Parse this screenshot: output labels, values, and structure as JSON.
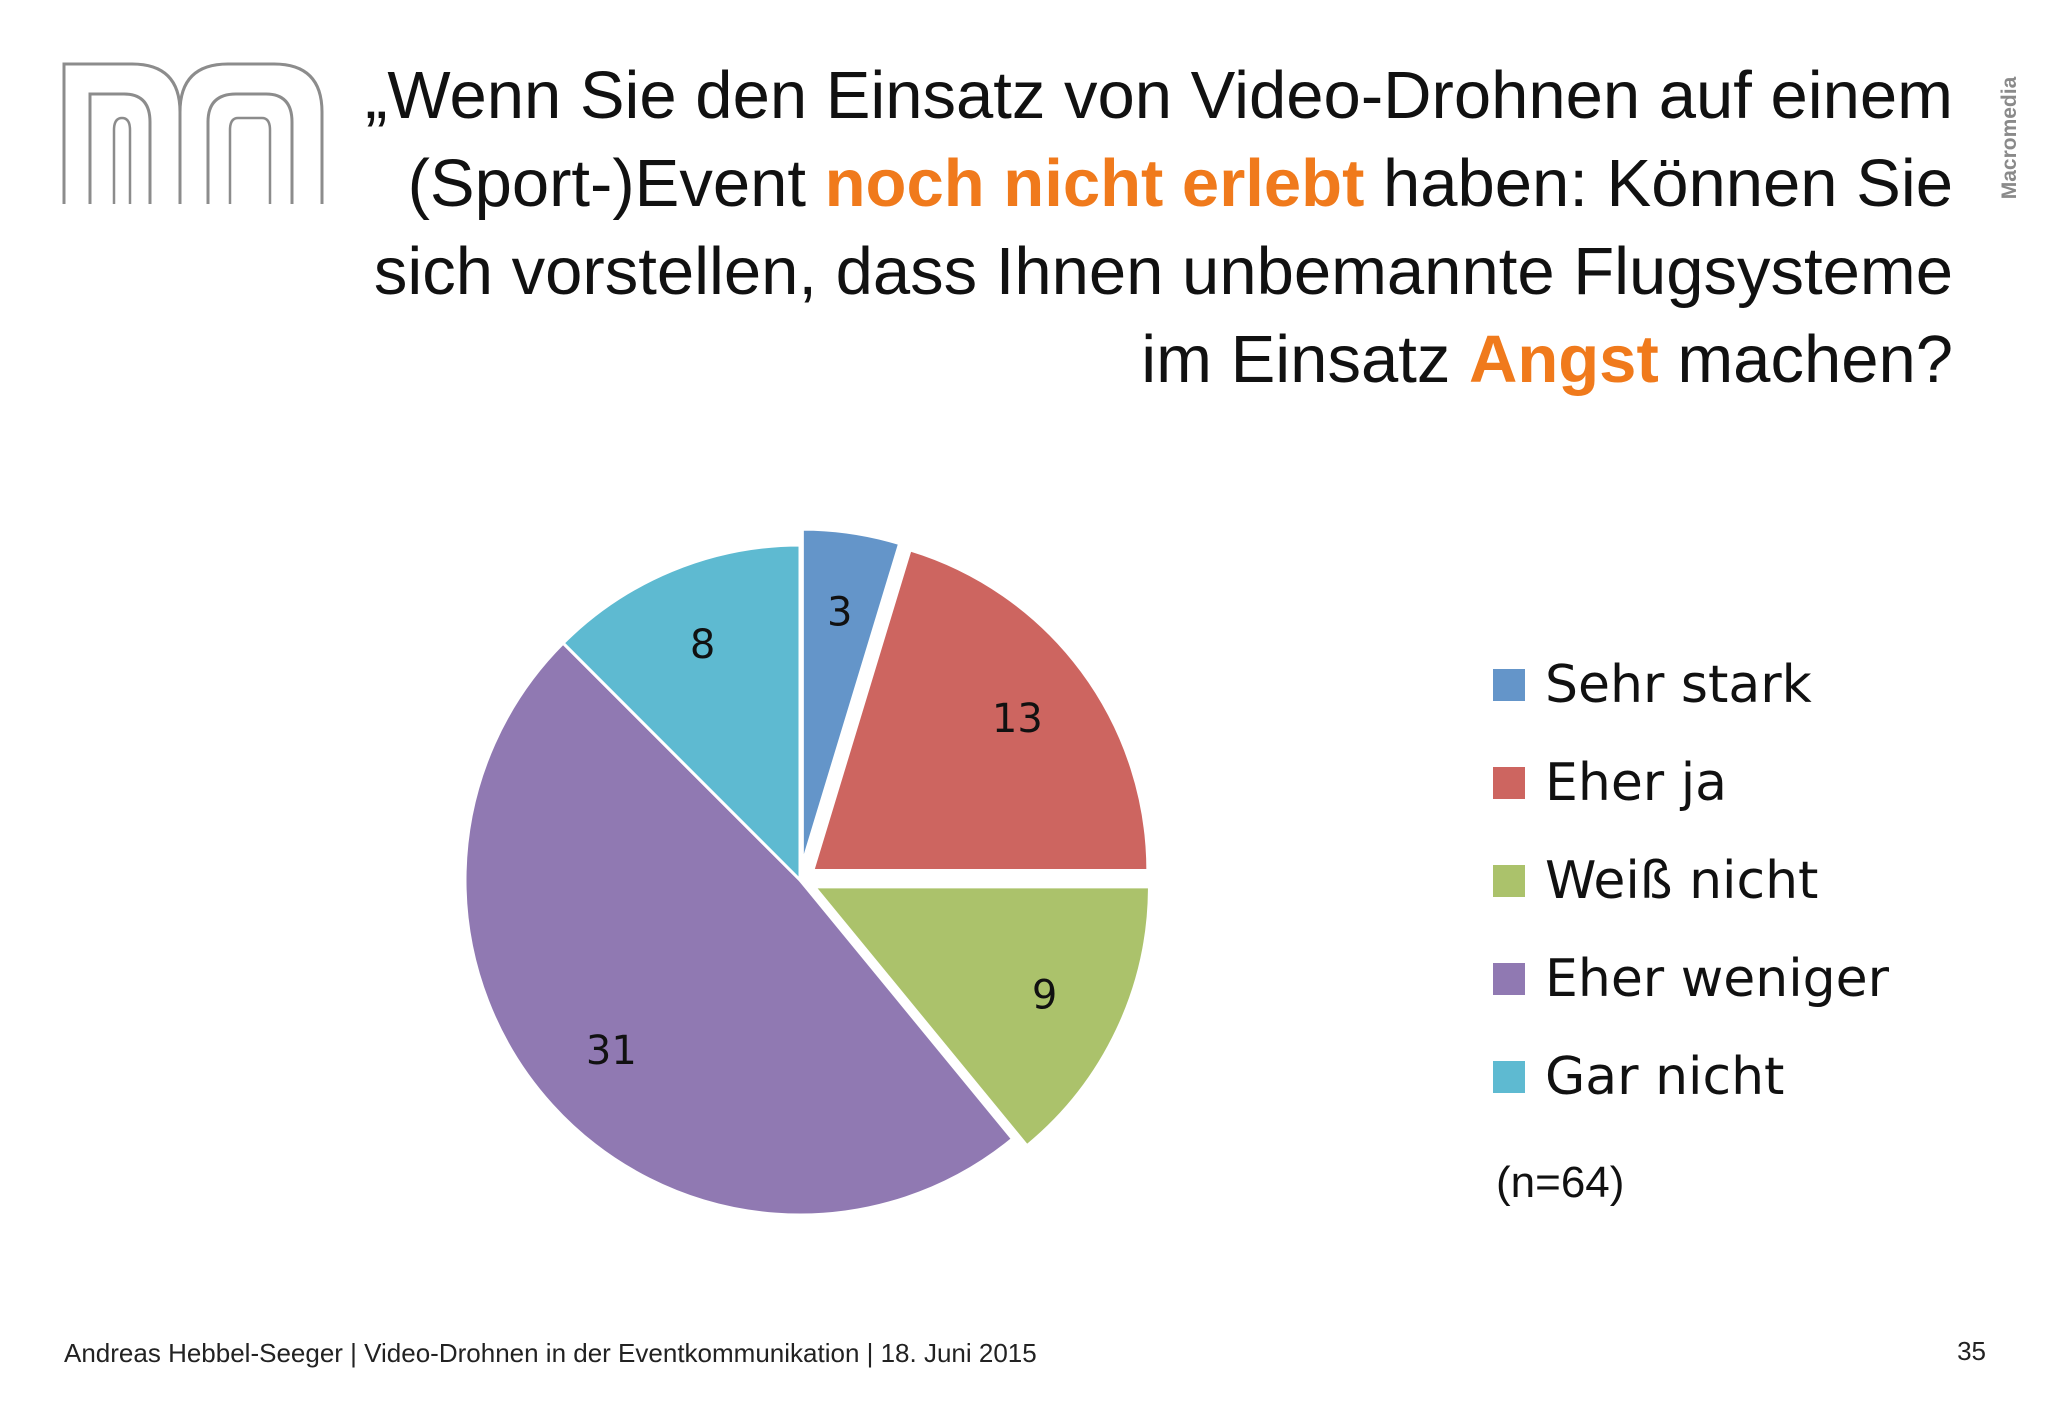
{
  "brand": "Macromedia",
  "logo": {
    "icon": "m-logo-icon",
    "color": "#8c8c8c"
  },
  "question": {
    "parts": [
      {
        "text": "„Wenn Sie den Einsatz von Video-Drohnen auf einem (Sport-)Event ",
        "highlight": false
      },
      {
        "text": "noch nicht erlebt",
        "highlight": true
      },
      {
        "text": " haben: Können Sie sich vorstellen, dass Ihnen unbemannte Flugsysteme im Einsatz ",
        "highlight": false
      },
      {
        "text": "Angst",
        "highlight": true
      },
      {
        "text": " machen?",
        "highlight": false
      }
    ],
    "highlight_color": "#f07a1c"
  },
  "chart_data": {
    "type": "pie",
    "categories": [
      "Sehr stark",
      "Eher ja",
      "Weiß nicht",
      "Eher weniger",
      "Gar nicht"
    ],
    "values": [
      3,
      13,
      9,
      31,
      8
    ],
    "exploded": [
      true,
      true,
      true,
      false,
      false
    ],
    "start": "12 o'clock",
    "direction": "clockwise",
    "colors": [
      "#6495c9",
      "#cd6560",
      "#abc26b",
      "#9079b2",
      "#5ebad1"
    ],
    "legend": "right",
    "sample_note": "(n=64)"
  },
  "footer": {
    "text": "Andreas Hebbel-Seeger | Video-Drohnen in der Eventkommunikation | 18. Juni 2015",
    "page": "35"
  }
}
